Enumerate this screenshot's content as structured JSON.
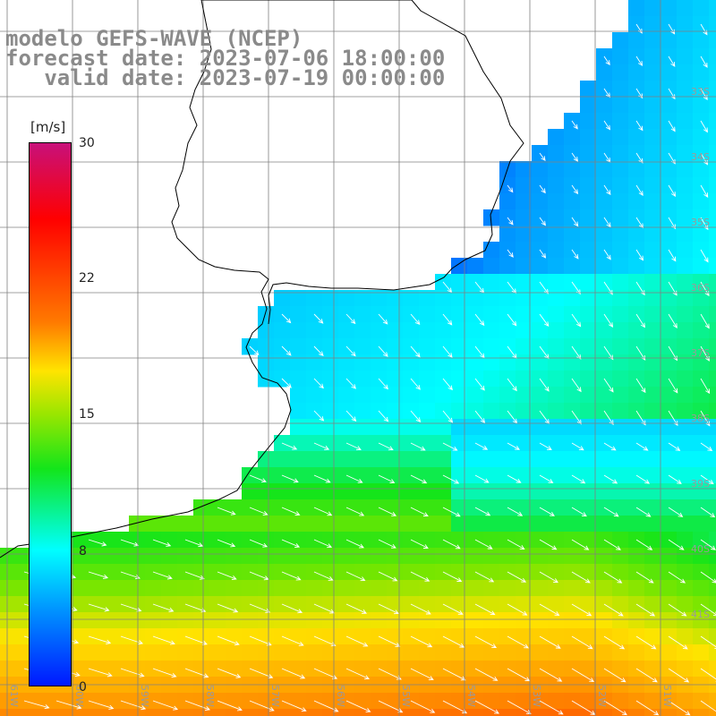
{
  "map": {
    "title_lines": [
      "modelo GEFS-WAVE (NCEP)",
      "forecast date: 2023-07-06 18:00:00",
      "   valid date: 2023-07-19 00:00:00"
    ],
    "colorbar": {
      "units": "[m/s]",
      "tick_labels": [
        "30",
        "22",
        "15",
        "8",
        "0"
      ]
    },
    "lon_labels": [
      "61W",
      "60W",
      "59W",
      "58W",
      "57W",
      "56W",
      "55W",
      "54W",
      "53W",
      "52W",
      "51W"
    ],
    "lat_labels": [
      "33S",
      "34S",
      "35S",
      "36S",
      "37S",
      "38S",
      "39S",
      "40S",
      "41S"
    ],
    "colors": {
      "land": "#ffffff",
      "coastline": "#000000",
      "grid": "#808080",
      "arrows": "#ffffff",
      "title_text": "#8a8a8a"
    }
  }
}
